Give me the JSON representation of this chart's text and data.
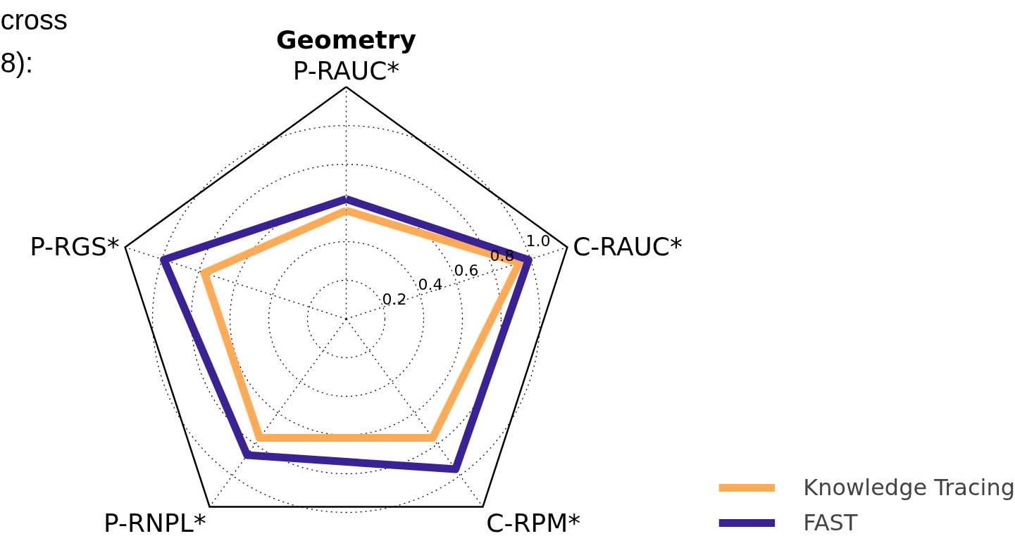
{
  "chart_data": {
    "type": "radar",
    "title": "Geometry",
    "categories": [
      "P-RAUC*",
      "C-RAUC*",
      "C-RPM*",
      "P-RNPL*",
      "P-RGS*"
    ],
    "series": [
      {
        "name": "Knowledge Tracing",
        "color": "#ffaa55",
        "values": [
          0.56,
          0.94,
          0.76,
          0.76,
          0.77
        ]
      },
      {
        "name": "FAST",
        "color": "#3b2196",
        "values": [
          0.62,
          0.99,
          0.96,
          0.87,
          0.99
        ]
      }
    ],
    "ylim": [
      0,
      1.2
    ],
    "yticks": [
      0.2,
      0.4,
      0.6,
      0.8,
      {
        "value": 1.0,
        "label": "1.0"
      }
    ],
    "grid": true,
    "legend": "bottom right",
    "annotations": [
      "cross",
      "8):"
    ]
  }
}
